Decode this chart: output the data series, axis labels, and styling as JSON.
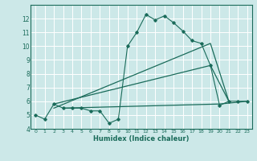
{
  "bg_color": "#cce8e8",
  "grid_color": "#ddeeee",
  "line_color": "#1a6b5a",
  "xlabel": "Humidex (Indice chaleur)",
  "xlim": [
    -0.5,
    23.5
  ],
  "ylim": [
    4,
    13
  ],
  "yticks": [
    4,
    5,
    6,
    7,
    8,
    9,
    10,
    11,
    12
  ],
  "xticks": [
    0,
    1,
    2,
    3,
    4,
    5,
    6,
    7,
    8,
    9,
    10,
    11,
    12,
    13,
    14,
    15,
    16,
    17,
    18,
    19,
    20,
    21,
    22,
    23
  ],
  "series1_x": [
    0,
    1,
    2,
    3,
    4,
    5,
    6,
    7,
    8,
    9,
    10,
    11,
    12,
    13,
    14,
    15,
    16,
    17,
    18,
    19,
    20,
    21,
    22,
    23
  ],
  "series1_y": [
    5.0,
    4.7,
    5.8,
    5.5,
    5.5,
    5.5,
    5.3,
    5.3,
    4.4,
    4.7,
    10.0,
    11.0,
    12.3,
    11.9,
    12.2,
    11.7,
    11.1,
    10.4,
    10.2,
    8.6,
    5.7,
    6.0,
    6.0,
    6.0
  ],
  "series2_x": [
    2,
    19,
    21
  ],
  "series2_y": [
    5.8,
    8.6,
    6.0
  ],
  "series3_x": [
    2,
    19,
    21
  ],
  "series3_y": [
    5.5,
    10.2,
    6.0
  ],
  "series4_x": [
    3,
    20,
    23
  ],
  "series4_y": [
    5.5,
    5.8,
    6.0
  ]
}
